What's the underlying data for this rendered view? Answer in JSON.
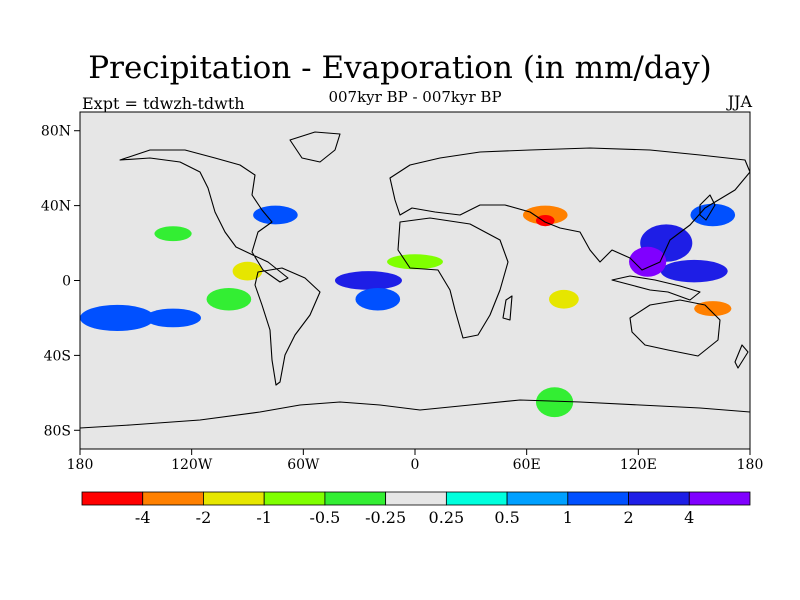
{
  "title": "Precipitation - Evaporation (in mm/day)",
  "subtitle": "007kyr BP - 007kyr BP",
  "experiment": "Expt = tdwzh-tdwth",
  "season": "JJA",
  "map": {
    "projection": "cylindrical equidistant",
    "lon_range": [
      -180,
      180
    ],
    "lat_range": [
      -90,
      90
    ],
    "background_color": "#e6e6e6",
    "lon_ticks": [
      {
        "value": -180,
        "label": "180"
      },
      {
        "value": -120,
        "label": "120W"
      },
      {
        "value": -60,
        "label": "60W"
      },
      {
        "value": 0,
        "label": "0"
      },
      {
        "value": 60,
        "label": "60E"
      },
      {
        "value": 120,
        "label": "120E"
      },
      {
        "value": 180,
        "label": "180"
      }
    ],
    "lat_ticks": [
      {
        "value": 80,
        "label": "80N"
      },
      {
        "value": 40,
        "label": "40N"
      },
      {
        "value": 0,
        "label": "0"
      },
      {
        "value": -40,
        "label": "40S"
      },
      {
        "value": -80,
        "label": "80S"
      }
    ]
  },
  "colorbar": {
    "colors": [
      "#ff0000",
      "#ff8000",
      "#e6e600",
      "#80ff00",
      "#33ee33",
      "#e6e6e6",
      "#00ffdd",
      "#00a0ff",
      "#0050ff",
      "#1e1ee6",
      "#8000ff"
    ],
    "labels": [
      "-4",
      "-2",
      "-1",
      "-0.5",
      "-0.25",
      "0.25",
      "0.5",
      "1",
      "2",
      "4"
    ]
  },
  "chart_data": {
    "type": "heatmap",
    "variable": "Precipitation - Evaporation",
    "units": "mm/day",
    "levels": [
      -4,
      -2,
      -1,
      -0.5,
      -0.25,
      0.25,
      0.5,
      1,
      2,
      4
    ],
    "features": [
      {
        "lon": 135,
        "lat": 20,
        "rx": 14,
        "ry": 10,
        "value": 3
      },
      {
        "lon": 150,
        "lat": 5,
        "rx": 18,
        "ry": 6,
        "value": 2.5
      },
      {
        "lon": 125,
        "lat": 10,
        "rx": 10,
        "ry": 8,
        "value": 4.5
      },
      {
        "lon": 160,
        "lat": 35,
        "rx": 12,
        "ry": 6,
        "value": 1.5
      },
      {
        "lon": -25,
        "lat": 0,
        "rx": 18,
        "ry": 5,
        "value": 2
      },
      {
        "lon": -20,
        "lat": -10,
        "rx": 12,
        "ry": 6,
        "value": 1
      },
      {
        "lon": -75,
        "lat": 35,
        "rx": 12,
        "ry": 5,
        "value": 1.5
      },
      {
        "lon": -160,
        "lat": -20,
        "rx": 20,
        "ry": 7,
        "value": 1
      },
      {
        "lon": -130,
        "lat": -20,
        "rx": 15,
        "ry": 5,
        "value": 1
      },
      {
        "lon": 70,
        "lat": 35,
        "rx": 12,
        "ry": 5,
        "value": -2.5
      },
      {
        "lon": 70,
        "lat": 32,
        "rx": 5,
        "ry": 3,
        "value": -4.5
      },
      {
        "lon": 160,
        "lat": -15,
        "rx": 10,
        "ry": 4,
        "value": -3
      },
      {
        "lon": 80,
        "lat": -10,
        "rx": 8,
        "ry": 5,
        "value": -1.5
      },
      {
        "lon": -90,
        "lat": 5,
        "rx": 8,
        "ry": 5,
        "value": -1.5
      },
      {
        "lon": 0,
        "lat": 10,
        "rx": 15,
        "ry": 4,
        "value": -1
      },
      {
        "lon": -100,
        "lat": -10,
        "rx": 12,
        "ry": 6,
        "value": -0.4
      },
      {
        "lon": 75,
        "lat": -65,
        "rx": 10,
        "ry": 8,
        "value": -0.4
      },
      {
        "lon": -130,
        "lat": 25,
        "rx": 10,
        "ry": 4,
        "value": -0.4
      }
    ]
  }
}
